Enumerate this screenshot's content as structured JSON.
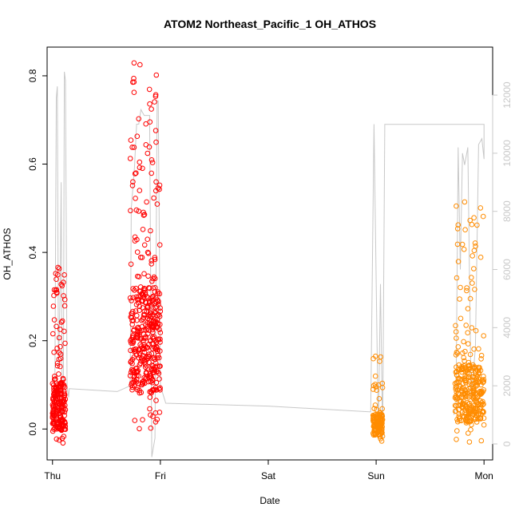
{
  "chart_data": {
    "type": "scatter",
    "title": "ATOM2 Northeast_Pacific_1 OH_ATHOS",
    "xlabel": "Date",
    "ylabel": "OH_ATHOS",
    "xlim": [
      -0.05,
      4.08
    ],
    "ylim": [
      -0.07,
      0.865
    ],
    "x_ticks": [
      {
        "value": 0,
        "label": "Thu"
      },
      {
        "value": 1,
        "label": "Fri"
      },
      {
        "value": 2,
        "label": "Sat"
      },
      {
        "value": 3,
        "label": "Sun"
      },
      {
        "value": 4,
        "label": "Mon"
      }
    ],
    "y_ticks": [
      0.0,
      0.2,
      0.4,
      0.6,
      0.8
    ],
    "y_tick_labels": [
      "0.0",
      "0.2",
      "0.4",
      "0.6",
      "0.8"
    ],
    "y2_lim": [
      -550,
      13650
    ],
    "y2_ticks": [
      0,
      2000,
      4000,
      6000,
      8000,
      10000,
      12000
    ],
    "y2_tick_labels": [
      "0",
      "2000",
      "4000",
      "6000",
      "8000",
      "10000",
      "12000"
    ],
    "grid": false,
    "colors": {
      "series_red": "#ff0000",
      "series_orange": "#ff8c00",
      "altitude_line": "#c8c8c8"
    },
    "series": [
      {
        "color": "#ff0000",
        "marker": "open-circle",
        "clusters": [
          {
            "x_range": [
              0.0,
              0.12
            ],
            "y_range": [
              -0.04,
              0.37
            ],
            "count": 230,
            "center_y": 0.05
          },
          {
            "x_range": [
              0.72,
              1.0
            ],
            "y_range": [
              0.0,
              0.84
            ],
            "count": 420,
            "center_y": 0.2
          }
        ]
      },
      {
        "color": "#ff8c00",
        "marker": "open-circle",
        "clusters": [
          {
            "x_range": [
              2.97,
              3.06
            ],
            "y_range": [
              -0.03,
              0.18
            ],
            "count": 130,
            "center_y": 0.01
          },
          {
            "x_range": [
              3.73,
              4.0
            ],
            "y_range": [
              -0.03,
              0.52
            ],
            "count": 330,
            "center_y": 0.08
          }
        ]
      }
    ],
    "altitude": {
      "axis": "right",
      "points": [
        [
          -0.02,
          1300
        ],
        [
          0.0,
          1100
        ],
        [
          0.02,
          600
        ],
        [
          0.035,
          11900
        ],
        [
          0.045,
          12300
        ],
        [
          0.055,
          2600
        ],
        [
          0.07,
          5000
        ],
        [
          0.08,
          9000
        ],
        [
          0.09,
          800
        ],
        [
          0.1,
          1200
        ],
        [
          0.11,
          12800
        ],
        [
          0.12,
          12500
        ],
        [
          0.135,
          2000
        ],
        [
          0.15,
          1600
        ],
        [
          0.155,
          1900
        ],
        [
          0.6,
          1800
        ],
        [
          0.72,
          2000
        ],
        [
          0.73,
          8100
        ],
        [
          0.76,
          9500
        ],
        [
          0.78,
          11000
        ],
        [
          0.8,
          11000
        ],
        [
          0.82,
          11500
        ],
        [
          0.85,
          11300
        ],
        [
          0.9,
          11300
        ],
        [
          0.92,
          -450
        ],
        [
          0.95,
          200
        ],
        [
          0.97,
          11800
        ],
        [
          0.98,
          11800
        ],
        [
          1.0,
          2000
        ],
        [
          1.05,
          1400
        ],
        [
          2.0,
          1300
        ],
        [
          2.95,
          1100
        ],
        [
          2.98,
          11000
        ],
        [
          3.02,
          300
        ],
        [
          3.04,
          5500
        ],
        [
          3.06,
          200
        ],
        [
          3.08,
          10990
        ],
        [
          3.5,
          10990
        ],
        [
          4.0,
          10990
        ],
        [
          4.0,
          9800
        ],
        [
          3.98,
          10500
        ],
        [
          3.95,
          10300
        ],
        [
          3.92,
          3300
        ],
        [
          3.88,
          1600
        ],
        [
          3.85,
          10200
        ],
        [
          3.82,
          9600
        ],
        [
          3.8,
          10000
        ],
        [
          3.78,
          6000
        ],
        [
          3.76,
          10200
        ],
        [
          3.74,
          1300
        ],
        [
          3.72,
          1000
        ]
      ]
    }
  }
}
